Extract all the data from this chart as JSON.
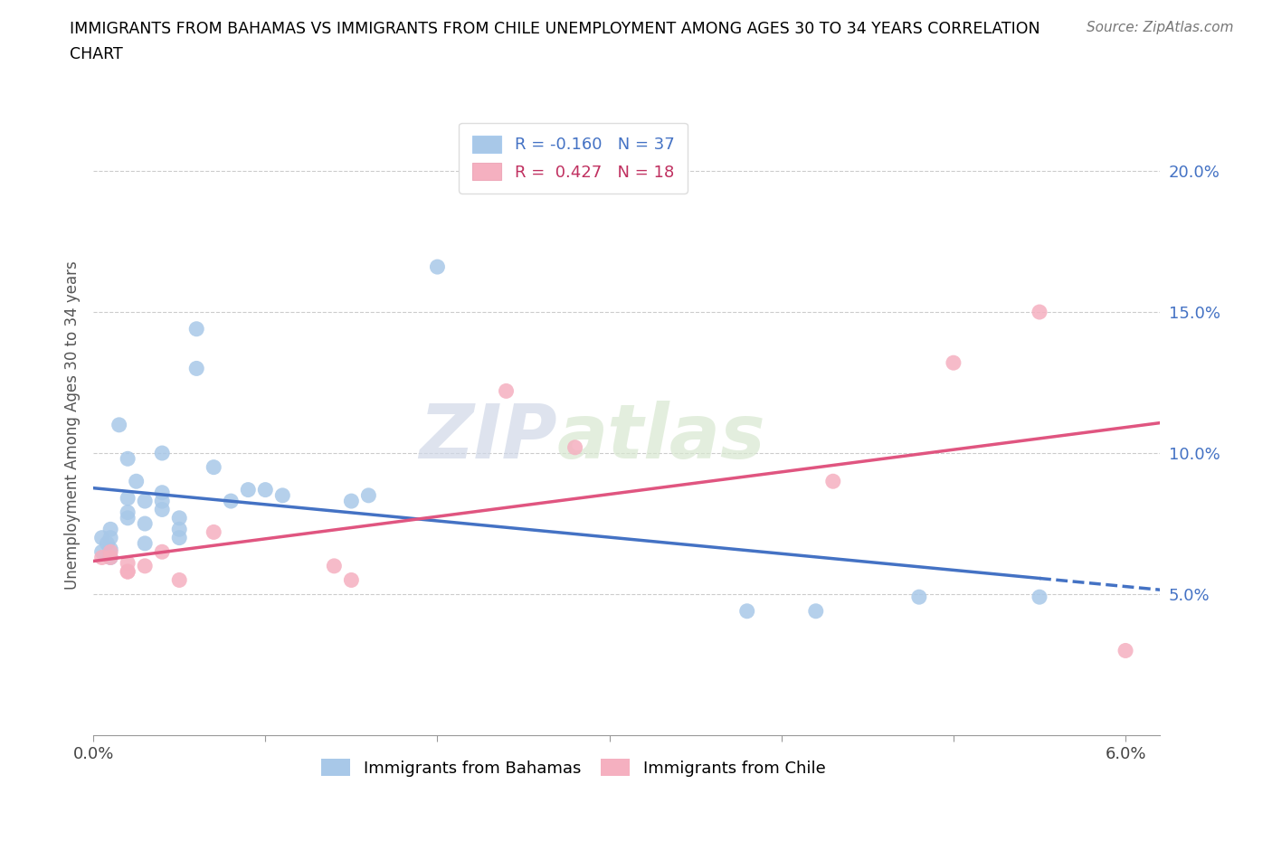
{
  "title_line1": "IMMIGRANTS FROM BAHAMAS VS IMMIGRANTS FROM CHILE UNEMPLOYMENT AMONG AGES 30 TO 34 YEARS CORRELATION",
  "title_line2": "CHART",
  "source": "Source: ZipAtlas.com",
  "ylabel": "Unemployment Among Ages 30 to 34 years",
  "xlim": [
    0.0,
    0.062
  ],
  "ylim": [
    0.0,
    0.22
  ],
  "bahamas_color": "#a8c8e8",
  "chile_color": "#f5b0c0",
  "bahamas_line_color": "#4472c4",
  "chile_line_color": "#e05580",
  "legend_R_bahamas": "R = -0.160",
  "legend_N_bahamas": "N = 37",
  "legend_R_chile": "R =  0.427",
  "legend_N_chile": "N = 18",
  "bahamas_x": [
    0.0005,
    0.0005,
    0.0008,
    0.001,
    0.001,
    0.001,
    0.001,
    0.0015,
    0.002,
    0.002,
    0.002,
    0.002,
    0.0025,
    0.003,
    0.003,
    0.003,
    0.004,
    0.004,
    0.004,
    0.004,
    0.005,
    0.005,
    0.005,
    0.006,
    0.006,
    0.007,
    0.008,
    0.009,
    0.01,
    0.011,
    0.015,
    0.016,
    0.02,
    0.038,
    0.042,
    0.048,
    0.055
  ],
  "bahamas_y": [
    0.065,
    0.07,
    0.068,
    0.066,
    0.07,
    0.073,
    0.063,
    0.11,
    0.077,
    0.084,
    0.079,
    0.098,
    0.09,
    0.083,
    0.075,
    0.068,
    0.1,
    0.086,
    0.08,
    0.083,
    0.077,
    0.073,
    0.07,
    0.13,
    0.144,
    0.095,
    0.083,
    0.087,
    0.087,
    0.085,
    0.083,
    0.085,
    0.166,
    0.044,
    0.044,
    0.049,
    0.049
  ],
  "chile_x": [
    0.0005,
    0.001,
    0.001,
    0.002,
    0.002,
    0.002,
    0.003,
    0.004,
    0.005,
    0.007,
    0.014,
    0.015,
    0.024,
    0.028,
    0.043,
    0.05,
    0.055,
    0.06
  ],
  "chile_y": [
    0.063,
    0.065,
    0.063,
    0.061,
    0.058,
    0.058,
    0.06,
    0.065,
    0.055,
    0.072,
    0.06,
    0.055,
    0.122,
    0.102,
    0.09,
    0.132,
    0.15,
    0.03
  ],
  "watermark_part1": "ZIP",
  "watermark_part2": "atlas"
}
